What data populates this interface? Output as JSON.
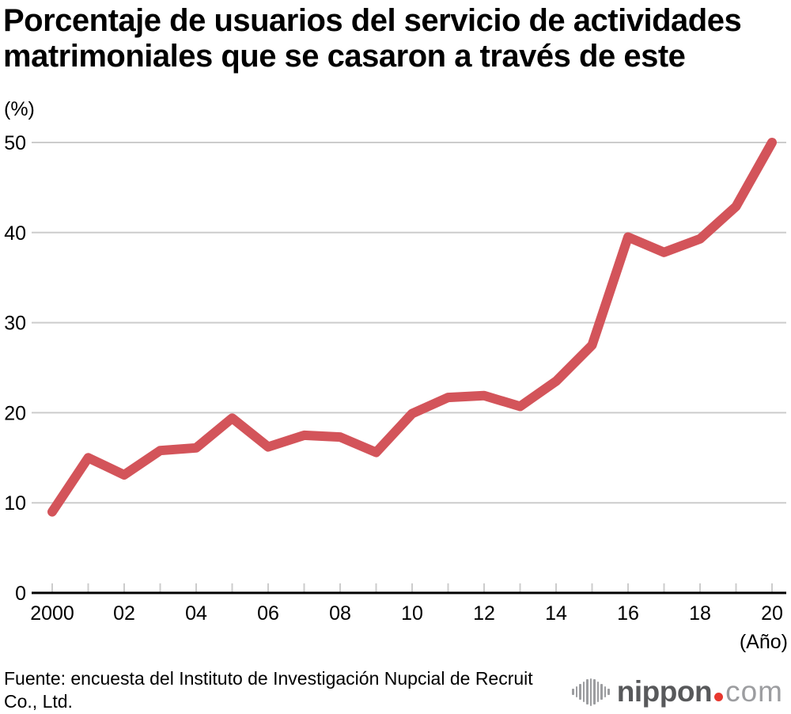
{
  "title": {
    "line1": "Porcentaje de usuarios del servicio de actividades",
    "line2": "matrimoniales que se casaron a través de este"
  },
  "axis_unit_y": "(%)",
  "axis_unit_x": "(Año)",
  "source": {
    "line1": "Fuente: encuesta del Instituto de Investigación Nupcial de Recruit",
    "line2": "Co., Ltd."
  },
  "logo": {
    "name": "nippon",
    "tld": "com"
  },
  "colors": {
    "line": "#d3545a",
    "grid": "#cccccc",
    "tick": "#cccccc",
    "axis": "#000000",
    "text": "#000000",
    "logo_dark": "#58595b",
    "logo_light": "#9c9da0",
    "logo_dot": "#e8382f"
  },
  "chart_data": {
    "type": "line",
    "title": "Porcentaje de usuarios del servicio de actividades matrimoniales que se casaron a través de este",
    "x": [
      2000,
      2001,
      2002,
      2003,
      2004,
      2005,
      2006,
      2007,
      2008,
      2009,
      2010,
      2011,
      2012,
      2013,
      2014,
      2015,
      2016,
      2017,
      2018,
      2019,
      2020
    ],
    "values": [
      9.0,
      15.0,
      13.1,
      15.8,
      16.1,
      19.4,
      16.2,
      17.5,
      17.3,
      15.6,
      19.9,
      21.7,
      21.9,
      20.7,
      23.5,
      27.5,
      39.5,
      37.8,
      39.3,
      42.9,
      50.0
    ],
    "x_tick_labels": [
      "2000",
      "",
      "02",
      "",
      "04",
      "",
      "06",
      "",
      "08",
      "",
      "10",
      "",
      "12",
      "",
      "14",
      "",
      "16",
      "",
      "18",
      "",
      "20"
    ],
    "y_ticks": [
      0,
      10,
      20,
      30,
      40,
      50
    ],
    "ylim": [
      0,
      52
    ],
    "xlabel": "(Año)",
    "ylabel": "(%)",
    "grid": "horizontal-only",
    "legend": "none"
  }
}
